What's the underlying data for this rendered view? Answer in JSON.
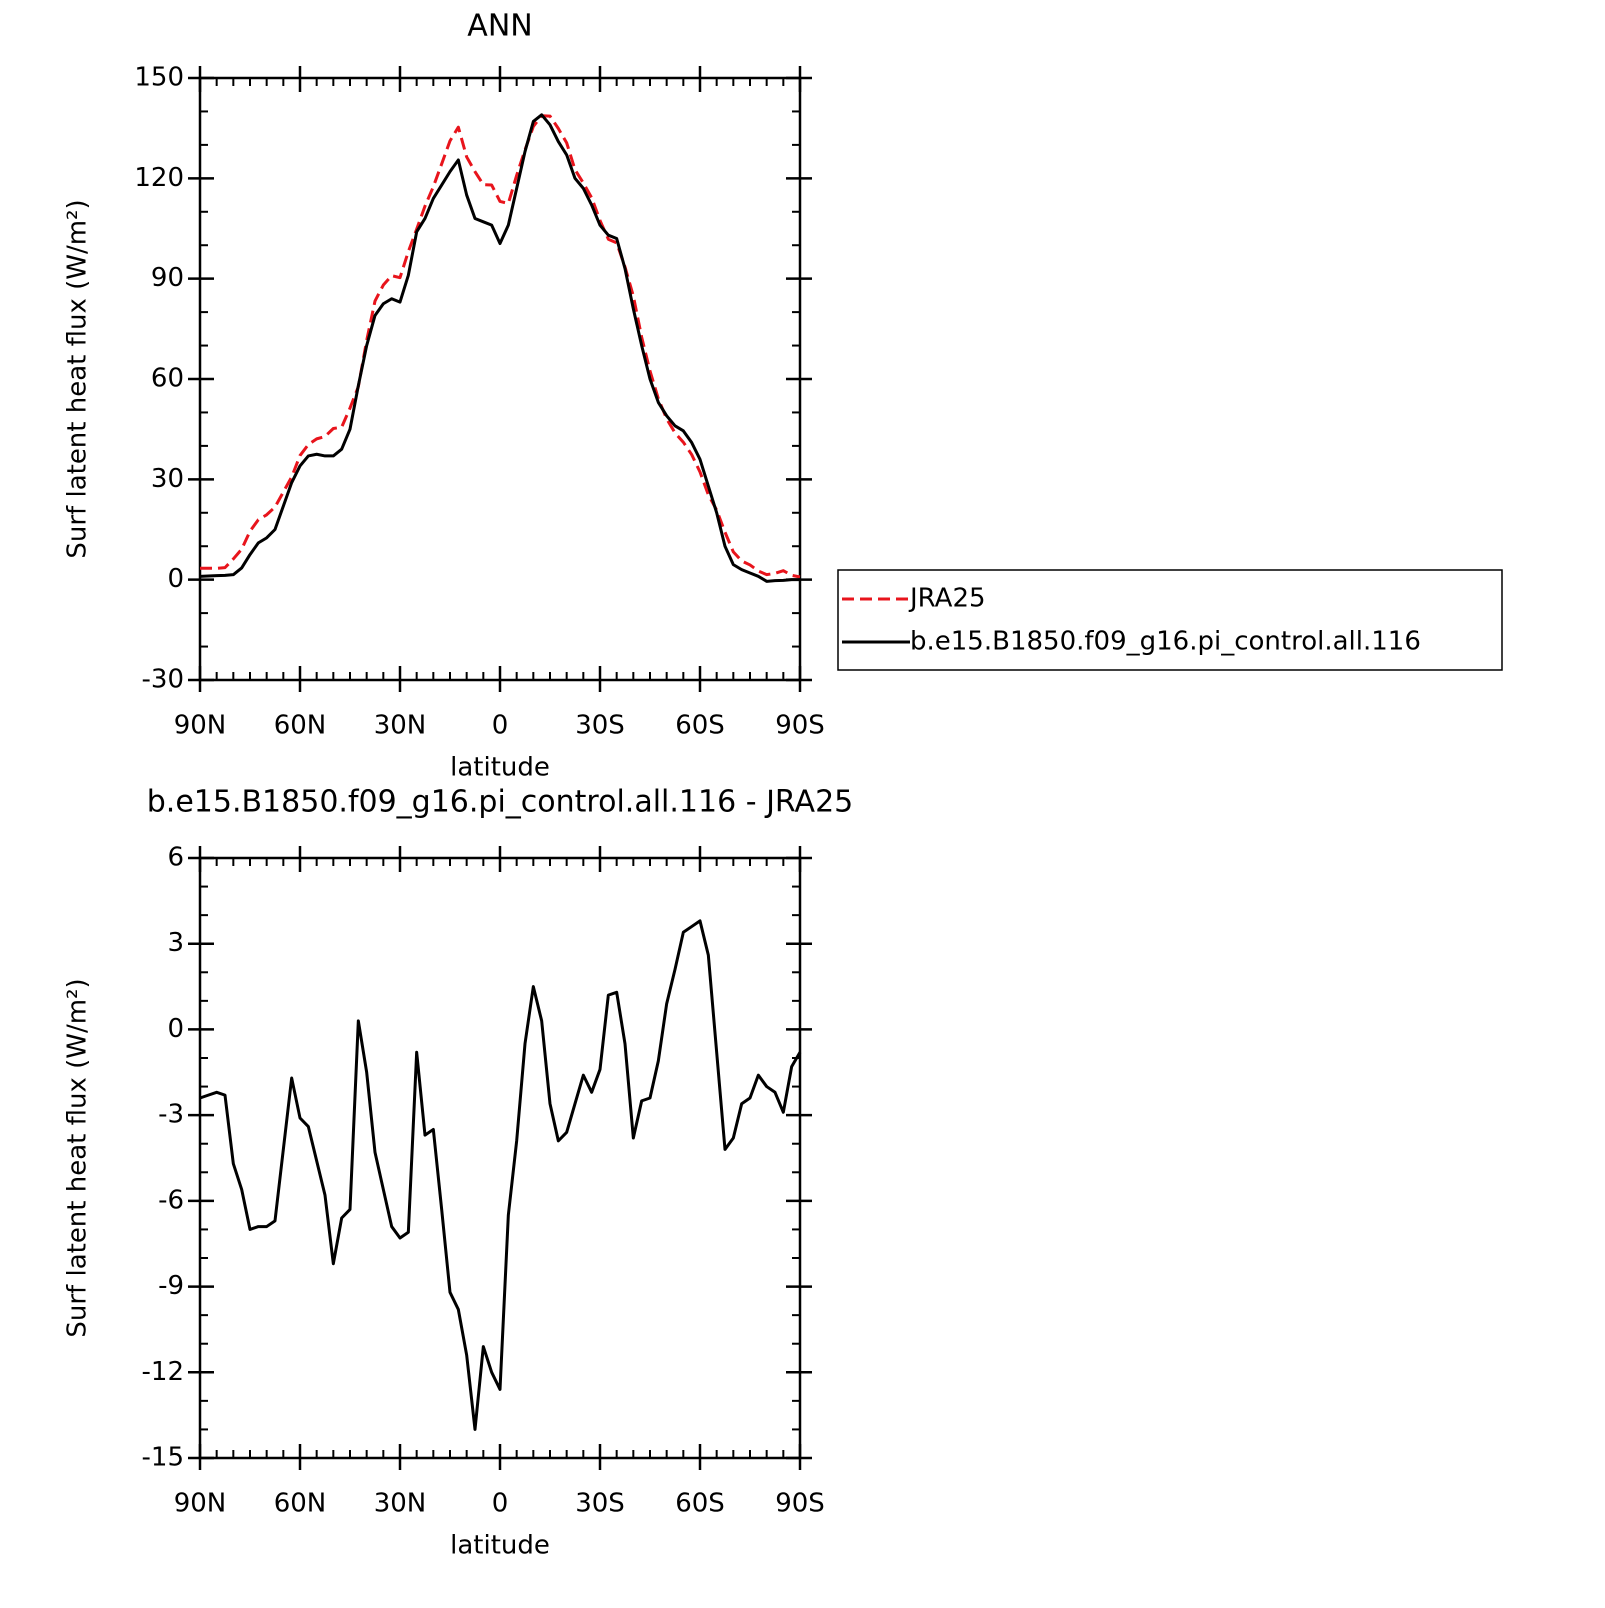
{
  "chart_data": [
    {
      "type": "line",
      "title": "ANN",
      "xlabel": "latitude",
      "ylabel": "Surf latent heat flux (W/m²)",
      "x": [
        90,
        87.5,
        85,
        82.5,
        80,
        77.5,
        75,
        72.5,
        70,
        67.5,
        65,
        62.5,
        60,
        57.5,
        55,
        52.5,
        50,
        47.5,
        45,
        42.5,
        40,
        37.5,
        35,
        32.5,
        30,
        27.5,
        25,
        22.5,
        20,
        17.5,
        15,
        12.5,
        10,
        7.5,
        5,
        2.5,
        0,
        -2.5,
        -5,
        -7.5,
        -10,
        -12.5,
        -15,
        -17.5,
        -20,
        -22.5,
        -25,
        -27.5,
        -30,
        -32.5,
        -35,
        -37.5,
        -40,
        -42.5,
        -45,
        -47.5,
        -50,
        -52.5,
        -55,
        -57.5,
        -60,
        -62.5,
        -65,
        -67.5,
        -70,
        -72.5,
        -75,
        -77.5,
        -80,
        -82.5,
        -85,
        -87.5,
        -90
      ],
      "series": [
        {
          "name": "JRA25",
          "color": "#e8141c",
          "dash": true,
          "values": [
            3.4,
            3.4,
            3.4,
            3.6,
            6.2,
            9.1,
            14.5,
            17.9,
            19.4,
            21.7,
            26.2,
            30.7,
            37.1,
            40.4,
            42.1,
            42.8,
            45.2,
            45.6,
            51.3,
            57.7,
            71.5,
            83.3,
            88.1,
            90.9,
            90.3,
            98.1,
            104.8,
            111.7,
            117.5,
            124.3,
            131.2,
            135.3,
            126.4,
            122,
            118.1,
            118,
            113.1,
            112.5,
            120.9,
            128.5,
            135.5,
            138.7,
            138.6,
            134.9,
            130.6,
            122.6,
            118.6,
            114.2,
            107.4,
            101.8,
            100.7,
            93.5,
            84.8,
            72.5,
            62.4,
            54.1,
            48.1,
            43.9,
            41.1,
            37.4,
            32.2,
            25.4,
            20.8,
            14.2,
            8.3,
            5.6,
            4.4,
            2.6,
            1.5,
            1.9,
            2.7,
            1.3,
            0.8
          ]
        },
        {
          "name": "b.e15.B1850.f09_g16.pi_control.all.116",
          "color": "#000000",
          "dash": false,
          "values": [
            1.0,
            1.1,
            1.2,
            1.3,
            1.5,
            3.5,
            7.5,
            11,
            12.5,
            15,
            22,
            29,
            34,
            37,
            37.5,
            37,
            37,
            39,
            45,
            58,
            70,
            79,
            82.5,
            84,
            83,
            91,
            104,
            108,
            114,
            118,
            122,
            125.5,
            115,
            108,
            107,
            106,
            100.5,
            106,
            117,
            128,
            137,
            139,
            136,
            131,
            127,
            120,
            117,
            112,
            106,
            103,
            102,
            93,
            81,
            70,
            60,
            53,
            49,
            46,
            44.5,
            41,
            36,
            28,
            20,
            10,
            4.5,
            3,
            2,
            1,
            -0.5,
            -0.3,
            -0.2,
            0,
            0
          ]
        }
      ],
      "xlim": [
        90,
        -90
      ],
      "xticks": [
        {
          "value": 90,
          "label": "90N"
        },
        {
          "value": 60,
          "label": "60N"
        },
        {
          "value": 30,
          "label": "30N"
        },
        0,
        {
          "value": -30,
          "label": "30S"
        },
        {
          "value": -60,
          "label": "60S"
        },
        {
          "value": -90,
          "label": "90S"
        }
      ],
      "ylim": [
        -30,
        150
      ],
      "yticks": [
        -30,
        0,
        30,
        60,
        90,
        120,
        150
      ],
      "legend": "right"
    },
    {
      "type": "line",
      "title": "b.e15.B1850.f09_g16.pi_control.all.116 - JRA25",
      "xlabel": "latitude",
      "ylabel": "Surf latent heat flux (W/m²)",
      "x": [
        90,
        87.5,
        85,
        82.5,
        80,
        77.5,
        75,
        72.5,
        70,
        67.5,
        65,
        62.5,
        60,
        57.5,
        55,
        52.5,
        50,
        47.5,
        45,
        42.5,
        40,
        37.5,
        35,
        32.5,
        30,
        27.5,
        25,
        22.5,
        20,
        17.5,
        15,
        12.5,
        10,
        7.5,
        5,
        2.5,
        0,
        -2.5,
        -5,
        -7.5,
        -10,
        -12.5,
        -15,
        -17.5,
        -20,
        -22.5,
        -25,
        -27.5,
        -30,
        -32.5,
        -35,
        -37.5,
        -40,
        -42.5,
        -45,
        -47.5,
        -50,
        -52.5,
        -55,
        -57.5,
        -60,
        -62.5,
        -65,
        -67.5,
        -70,
        -72.5,
        -75,
        -77.5,
        -80,
        -82.5,
        -85,
        -87.5,
        -90
      ],
      "series": [
        {
          "color": "#000000",
          "dash": false,
          "values": [
            -2.4,
            -2.3,
            -2.2,
            -2.3,
            -4.7,
            -5.6,
            -7.0,
            -6.9,
            -6.9,
            -6.7,
            -4.2,
            -1.7,
            -3.1,
            -3.4,
            -4.6,
            -5.8,
            -8.2,
            -6.6,
            -6.3,
            0.3,
            -1.5,
            -4.3,
            -5.6,
            -6.9,
            -7.3,
            -7.1,
            -0.8,
            -3.7,
            -3.5,
            -6.3,
            -9.2,
            -9.8,
            -11.4,
            -14.0,
            -11.1,
            -12.0,
            -12.6,
            -6.5,
            -3.9,
            -0.5,
            1.5,
            0.3,
            -2.6,
            -3.9,
            -3.6,
            -2.6,
            -1.6,
            -2.2,
            -1.4,
            1.2,
            1.3,
            -0.5,
            -3.8,
            -2.5,
            -2.4,
            -1.1,
            0.9,
            2.1,
            3.4,
            3.6,
            3.8,
            2.6,
            -0.8,
            -4.2,
            -3.8,
            -2.6,
            -2.4,
            -1.6,
            -2.0,
            -2.2,
            -2.9,
            -1.3,
            -0.8
          ]
        }
      ],
      "xlim": [
        90,
        -90
      ],
      "xticks": [
        {
          "value": 90,
          "label": "90N"
        },
        {
          "value": 60,
          "label": "60N"
        },
        {
          "value": 30,
          "label": "30N"
        },
        0,
        {
          "value": -30,
          "label": "30S"
        },
        {
          "value": -60,
          "label": "60S"
        },
        {
          "value": -90,
          "label": "90S"
        }
      ],
      "ylim": [
        -15,
        6
      ],
      "yticks": [
        -15,
        -12,
        -9,
        -6,
        -3,
        0,
        3,
        6
      ]
    }
  ]
}
